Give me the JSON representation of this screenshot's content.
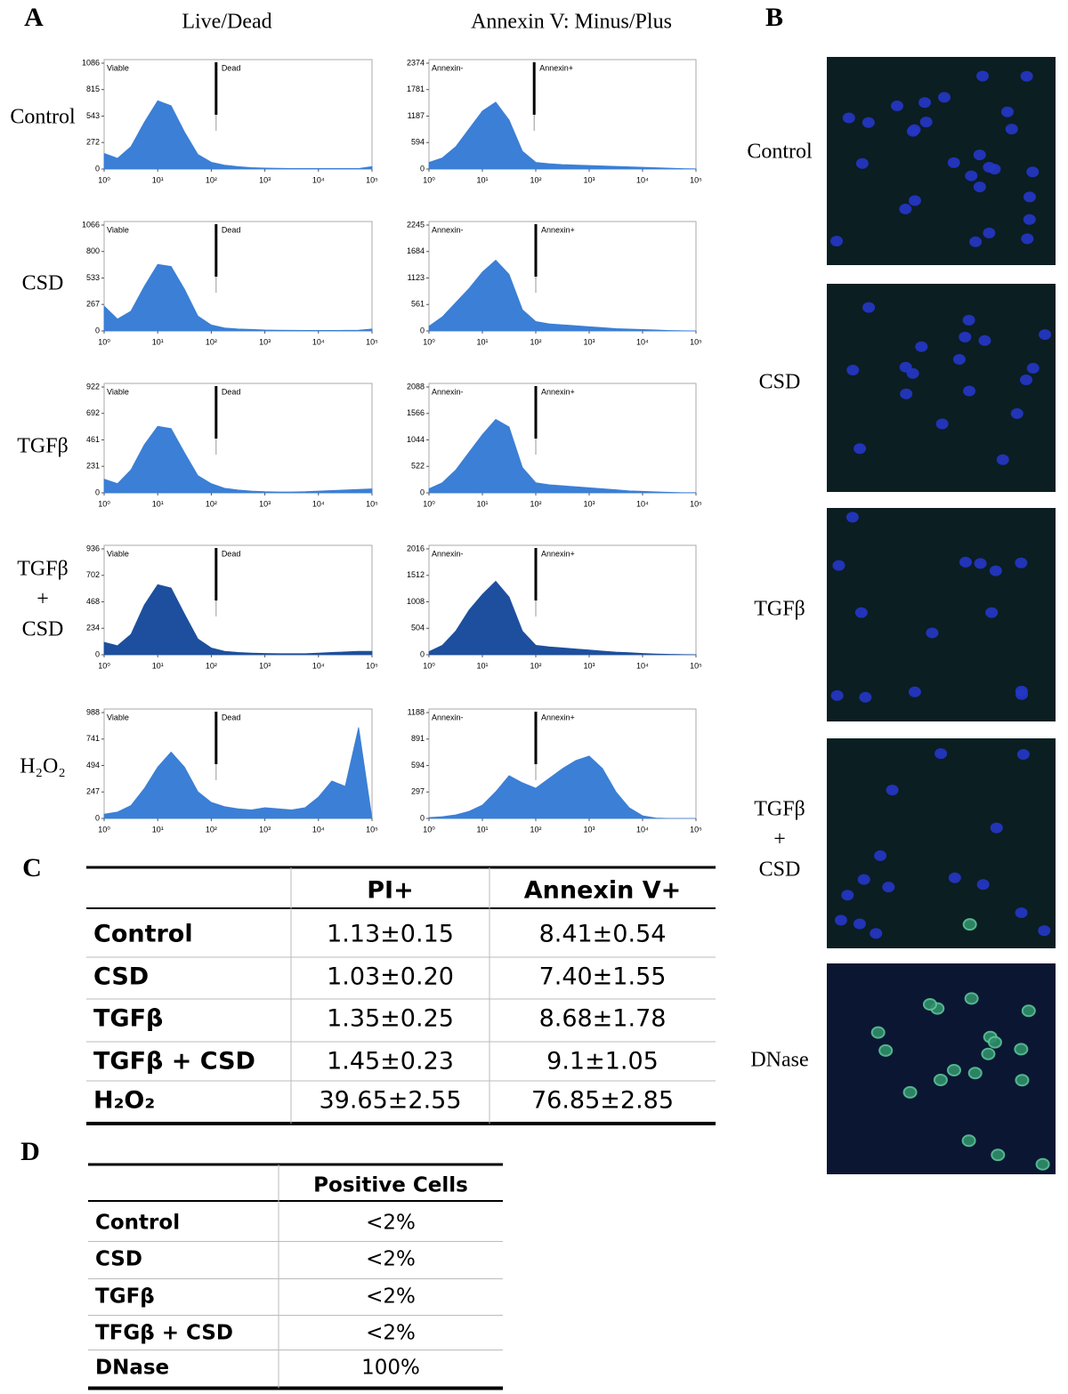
{
  "panel_a": {
    "label": "A",
    "columns": [
      "Live/Dead",
      "Annexin V: Minus/Plus"
    ],
    "x": [
      0,
      0.25,
      0.5,
      0.75,
      1,
      1.25,
      1.5,
      1.75,
      2,
      2.25,
      2.5,
      2.75,
      3,
      3.25,
      3.5,
      3.75,
      4,
      4.25,
      4.5,
      4.75,
      5
    ],
    "xlim": [
      0,
      5
    ],
    "xticks": [
      {
        "value": 0,
        "label": "10⁰"
      },
      {
        "value": 1,
        "label": "10¹"
      },
      {
        "value": 2,
        "label": "10²"
      },
      {
        "value": 3,
        "label": "10³"
      },
      {
        "value": 4,
        "label": "10⁴"
      },
      {
        "value": 5,
        "label": "10⁵"
      }
    ],
    "rows": [
      {
        "label": [
          "Control"
        ],
        "histograms": [
          {
            "type": "area",
            "gate_labels": [
              "Viable",
              "Dead"
            ],
            "gate": 2.09,
            "color": "#3b7fd6",
            "ylim": [
              0,
              1086
            ],
            "yticks": [
              0,
              272,
              543,
              815,
              1086
            ],
            "values": [
              160,
              110,
              230,
              480,
              700,
              650,
              380,
              150,
              70,
              40,
              25,
              15,
              10,
              8,
              6,
              5,
              5,
              5,
              5,
              6,
              25
            ]
          },
          {
            "type": "area",
            "gate_labels": [
              "Annexin-",
              "Annexin+"
            ],
            "gate": 1.97,
            "color": "#3b7fd6",
            "ylim": [
              0,
              2374
            ],
            "yticks": [
              0,
              594,
              1187,
              1781,
              2374
            ],
            "values": [
              150,
              250,
              500,
              900,
              1300,
              1500,
              1100,
              400,
              150,
              120,
              100,
              90,
              80,
              70,
              60,
              50,
              40,
              30,
              20,
              10,
              5
            ]
          }
        ]
      },
      {
        "label": [
          "CSD"
        ],
        "histograms": [
          {
            "type": "area",
            "gate_labels": [
              "Viable",
              "Dead"
            ],
            "gate": 2.09,
            "color": "#3b7fd6",
            "ylim": [
              0,
              1066
            ],
            "yticks": [
              0,
              267,
              533,
              800,
              1066
            ],
            "values": [
              250,
              120,
              200,
              450,
              670,
              650,
              420,
              150,
              60,
              30,
              20,
              15,
              10,
              8,
              6,
              5,
              5,
              5,
              6,
              8,
              20
            ]
          },
          {
            "type": "area",
            "gate_labels": [
              "Annexin-",
              "Annexin+"
            ],
            "gate": 2.0,
            "color": "#3b7fd6",
            "ylim": [
              0,
              2245
            ],
            "yticks": [
              0,
              561,
              1123,
              1684,
              2245
            ],
            "values": [
              100,
              300,
              600,
              900,
              1250,
              1500,
              1200,
              450,
              200,
              150,
              130,
              110,
              90,
              70,
              50,
              40,
              30,
              20,
              10,
              5,
              3
            ]
          }
        ]
      },
      {
        "label": [
          "TGFβ"
        ],
        "histograms": [
          {
            "type": "area",
            "gate_labels": [
              "Viable",
              "Dead"
            ],
            "gate": 2.09,
            "color": "#3b7fd6",
            "ylim": [
              0,
              922
            ],
            "yticks": [
              0,
              231,
              461,
              692,
              922
            ],
            "values": [
              120,
              80,
              200,
              420,
              580,
              560,
              350,
              150,
              80,
              40,
              25,
              15,
              10,
              8,
              8,
              10,
              15,
              20,
              25,
              30,
              35
            ]
          },
          {
            "type": "area",
            "gate_labels": [
              "Annexin-",
              "Annexin+"
            ],
            "gate": 2.0,
            "color": "#3b7fd6",
            "ylim": [
              0,
              2088
            ],
            "yticks": [
              0,
              522,
              1044,
              1566,
              2088
            ],
            "values": [
              80,
              200,
              450,
              800,
              1150,
              1450,
              1300,
              500,
              200,
              160,
              140,
              120,
              100,
              80,
              60,
              40,
              30,
              20,
              10,
              5,
              3
            ]
          }
        ]
      },
      {
        "label": [
          "TGFβ",
          "+",
          "CSD"
        ],
        "histograms": [
          {
            "type": "area",
            "gate_labels": [
              "Viable",
              "Dead"
            ],
            "gate": 2.09,
            "color": "#1d4f9e",
            "ylim": [
              0,
              936
            ],
            "yticks": [
              0,
              234,
              468,
              702,
              936
            ],
            "values": [
              110,
              80,
              180,
              440,
              620,
              590,
              360,
              140,
              60,
              30,
              20,
              15,
              12,
              10,
              10,
              10,
              15,
              20,
              25,
              30,
              30
            ]
          },
          {
            "type": "area",
            "gate_labels": [
              "Annexin-",
              "Annexin+"
            ],
            "gate": 2.0,
            "color": "#1d4f9e",
            "ylim": [
              0,
              2016
            ],
            "yticks": [
              0,
              504,
              1008,
              1512,
              2016
            ],
            "values": [
              60,
              180,
              450,
              850,
              1150,
              1400,
              1100,
              450,
              180,
              150,
              130,
              110,
              90,
              70,
              50,
              40,
              25,
              15,
              8,
              4,
              2
            ]
          }
        ]
      },
      {
        "label": [
          "H₂O₂"
        ],
        "histograms": [
          {
            "type": "area",
            "gate_labels": [
              "Viable",
              "Dead"
            ],
            "gate": 2.09,
            "color": "#3b7fd6",
            "ylim": [
              0,
              988
            ],
            "yticks": [
              0,
              247,
              494,
              741,
              988
            ],
            "values": [
              40,
              60,
              120,
              280,
              480,
              620,
              480,
              250,
              150,
              110,
              90,
              80,
              100,
              90,
              80,
              100,
              200,
              350,
              300,
              850,
              0
            ]
          },
          {
            "type": "area",
            "gate_labels": [
              "Annexin-",
              "Annexin+"
            ],
            "gate": 2.0,
            "color": "#3b7fd6",
            "ylim": [
              0,
              1188
            ],
            "yticks": [
              0,
              297,
              594,
              891,
              1188
            ],
            "values": [
              10,
              20,
              40,
              80,
              150,
              300,
              480,
              400,
              340,
              450,
              560,
              650,
              700,
              560,
              300,
              120,
              30,
              5,
              0,
              0,
              0
            ]
          }
        ]
      }
    ]
  },
  "panel_b": {
    "label": "B",
    "rows": [
      [
        "Control"
      ],
      [
        "CSD"
      ],
      [
        "TGFβ"
      ],
      [
        "TGFβ",
        "+",
        "CSD"
      ],
      [
        "DNase"
      ]
    ]
  },
  "panel_c": {
    "label": "C",
    "columns": [
      "PI+",
      "Annexin V+"
    ],
    "rows": [
      {
        "name": "Control",
        "values": [
          "1.13±0.15",
          "8.41±0.54"
        ]
      },
      {
        "name": "CSD",
        "values": [
          "1.03±0.20",
          "7.40±1.55"
        ]
      },
      {
        "name": "TGFβ",
        "values": [
          "1.35±0.25",
          "8.68±1.78"
        ]
      },
      {
        "name": "TGFβ + CSD",
        "values": [
          "1.45±0.23",
          "9.1±1.05"
        ]
      },
      {
        "name": "H₂O₂",
        "values": [
          "39.65±2.55",
          "76.85±2.85"
        ]
      }
    ]
  },
  "panel_d": {
    "label": "D",
    "columns": [
      "Positive Cells"
    ],
    "rows": [
      {
        "name": "Control",
        "values": [
          "<2%"
        ]
      },
      {
        "name": "CSD",
        "values": [
          "<2%"
        ]
      },
      {
        "name": "TGFβ",
        "values": [
          "<2%"
        ]
      },
      {
        "name": "TFGβ + CSD",
        "values": [
          "<2%"
        ]
      },
      {
        "name": "DNase",
        "values": [
          "100%"
        ]
      }
    ]
  }
}
